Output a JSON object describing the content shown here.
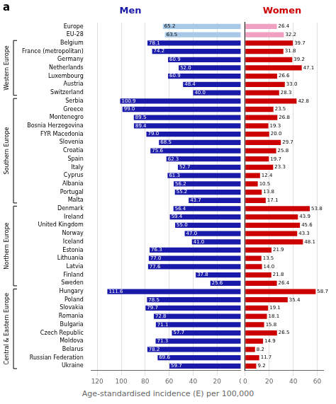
{
  "chart_data": [
    {
      "type": "bar",
      "orientation": "horizontal",
      "title": "Men",
      "color": "#1a1aaa",
      "xlabel": "Age-standardised incidence (E) per 100,000",
      "categories": [
        "Europe",
        "EU-28",
        "Belgium",
        "France (metropolitan)",
        "Germany",
        "Netherlands",
        "Luxembourg",
        "Austria",
        "Switzerland",
        "Serbia",
        "Greece",
        "Montenegro",
        "Bosnia Herzegovina",
        "FYR Macedonia",
        "Slovenia",
        "Croatia",
        "Spain",
        "Italy",
        "Cyprus",
        "Albania",
        "Portugal",
        "Malta",
        "Denmark",
        "Ireland",
        "United Kingdom",
        "Norway",
        "Iceland",
        "Estonia",
        "Lithuania",
        "Latvia",
        "Finland",
        "Sweden",
        "Hungary",
        "Poland",
        "Slovakia",
        "Romania",
        "Bulgaria",
        "Czech Republic",
        "Moldova",
        "Belarus",
        "Russian Federation",
        "Ukraine"
      ],
      "values": [
        65.2,
        63.5,
        78.1,
        74.2,
        60.9,
        52.0,
        60.9,
        48.4,
        40.0,
        100.9,
        99.0,
        89.5,
        89.4,
        79.0,
        68.5,
        75.6,
        62.3,
        52.7,
        61.3,
        56.2,
        55.2,
        43.7,
        56.4,
        59.4,
        55.0,
        47.0,
        41.0,
        76.3,
        77.0,
        77.6,
        37.8,
        25.6,
        111.6,
        78.5,
        79.7,
        72.8,
        71.1,
        57.7,
        71.3,
        78.2,
        69.6,
        59.7
      ],
      "value_labels": [
        "65.2",
        "63.5",
        "78.1",
        "74.2",
        "60.9",
        "52.0",
        "60.9",
        "48.4",
        "40.0",
        "100.9",
        "99.0",
        "89.5",
        "89.4",
        "79.0",
        "68.5",
        "75.6",
        "62.3",
        "52.7",
        "61.3",
        "56.2",
        "55.2",
        "43.7",
        "56.4",
        "59.4",
        "55.0",
        "47.0",
        "41.0",
        "76.3",
        "77.0",
        "77.6",
        "37.8",
        "25.6",
        "111.6",
        "78.5",
        "79.7",
        "72.8",
        "71.1",
        "57.7",
        "71.3",
        "78.2",
        "69.6",
        "59.7"
      ],
      "colors": [
        "#a8c8e8",
        "#a8c8e8",
        "#1a1aaa",
        "#1a1aaa",
        "#1a1aaa",
        "#1a1aaa",
        "#1a1aaa",
        "#1a1aaa",
        "#1a1aaa",
        "#1a1aaa",
        "#1a1aaa",
        "#1a1aaa",
        "#1a1aaa",
        "#1a1aaa",
        "#1a1aaa",
        "#1a1aaa",
        "#1a1aaa",
        "#1a1aaa",
        "#1a1aaa",
        "#1a1aaa",
        "#1a1aaa",
        "#1a1aaa",
        "#1a1aaa",
        "#1a1aaa",
        "#1a1aaa",
        "#1a1aaa",
        "#1a1aaa",
        "#1a1aaa",
        "#1a1aaa",
        "#1a1aaa",
        "#1a1aaa",
        "#1a1aaa",
        "#1a1aaa",
        "#1a1aaa",
        "#1a1aaa",
        "#1a1aaa",
        "#1a1aaa",
        "#1a1aaa",
        "#1a1aaa",
        "#1a1aaa",
        "#1a1aaa",
        "#1a1aaa"
      ],
      "xlim": [
        0,
        125
      ],
      "xticks": [
        0,
        20,
        40,
        60,
        80,
        100,
        120
      ],
      "grid": true,
      "data_labels": true,
      "annotations": [
        {
          "text": "a"
        },
        {
          "text": "Western Europe",
          "from": "Belgium",
          "to": "Switzerland"
        },
        {
          "text": "Southern Europe",
          "from": "Serbia",
          "to": "Malta"
        },
        {
          "text": "Northern Europe",
          "from": "Denmark",
          "to": "Sweden"
        },
        {
          "text": "Central & Eastern Europe",
          "from": "Hungary",
          "to": "Ukraine"
        }
      ]
    },
    {
      "type": "bar",
      "orientation": "horizontal",
      "title": "Women",
      "color": "#cc0000",
      "categories": [
        "Europe",
        "EU-28",
        "Belgium",
        "France (metropolitan)",
        "Germany",
        "Netherlands",
        "Luxembourg",
        "Austria",
        "Switzerland",
        "Serbia",
        "Greece",
        "Montenegro",
        "Bosnia Herzegovina",
        "FYR Macedonia",
        "Slovenia",
        "Croatia",
        "Spain",
        "Italy",
        "Cyprus",
        "Albania",
        "Portugal",
        "Malta",
        "Denmark",
        "Ireland",
        "United Kingdom",
        "Norway",
        "Iceland",
        "Estonia",
        "Lithuania",
        "Latvia",
        "Finland",
        "Sweden",
        "Hungary",
        "Poland",
        "Slovakia",
        "Romania",
        "Bulgaria",
        "Czech Republic",
        "Moldova",
        "Belarus",
        "Russian Federation",
        "Ukraine"
      ],
      "values": [
        26.4,
        32.2,
        39.7,
        31.8,
        39.2,
        47.1,
        26.6,
        33.0,
        28.3,
        42.8,
        23.5,
        26.8,
        19.3,
        20.0,
        29.7,
        25.8,
        19.7,
        23.3,
        12.4,
        10.5,
        13.8,
        17.1,
        53.8,
        43.9,
        45.6,
        43.3,
        48.1,
        21.9,
        13.5,
        14.0,
        21.8,
        26.4,
        58.7,
        35.4,
        19.1,
        18.1,
        15.8,
        26.5,
        14.9,
        8.2,
        11.7,
        9.2
      ],
      "value_labels": [
        "26.4",
        "32.2",
        "39.7",
        "31.8",
        "39.2",
        "47.1",
        "26.6",
        "33.0",
        "28.3",
        "42.8",
        "23.5",
        "26.8",
        "19.3",
        "20.0",
        "29.7",
        "25.8",
        "19.7",
        "23.3",
        "12.4",
        "10.5",
        "13.8",
        "17.1",
        "53.8",
        "43.9",
        "45.6",
        "43.3",
        "48.1",
        "21.9",
        "13.5",
        "14.0",
        "21.8",
        "26.4",
        "58.7",
        "35.4",
        "19.1",
        "18.1",
        "15.8",
        "26.5",
        "14.9",
        "8.2",
        "11.7",
        "9.2"
      ],
      "colors": [
        "#f0a0c0",
        "#f0a0c0",
        "#cc0000",
        "#cc0000",
        "#cc0000",
        "#cc0000",
        "#cc0000",
        "#cc0000",
        "#cc0000",
        "#cc0000",
        "#cc0000",
        "#cc0000",
        "#cc0000",
        "#cc0000",
        "#cc0000",
        "#cc0000",
        "#cc0000",
        "#cc0000",
        "#cc0000",
        "#cc0000",
        "#cc0000",
        "#cc0000",
        "#cc0000",
        "#cc0000",
        "#cc0000",
        "#cc0000",
        "#cc0000",
        "#cc0000",
        "#cc0000",
        "#cc0000",
        "#cc0000",
        "#cc0000",
        "#cc0000",
        "#cc0000",
        "#cc0000",
        "#cc0000",
        "#cc0000",
        "#cc0000",
        "#cc0000",
        "#cc0000",
        "#cc0000",
        "#cc0000"
      ],
      "xlim": [
        0,
        65
      ],
      "xticks": [
        0,
        20,
        40,
        60
      ],
      "grid": true,
      "data_labels": true,
      "tick_labels": "x"
    }
  ]
}
